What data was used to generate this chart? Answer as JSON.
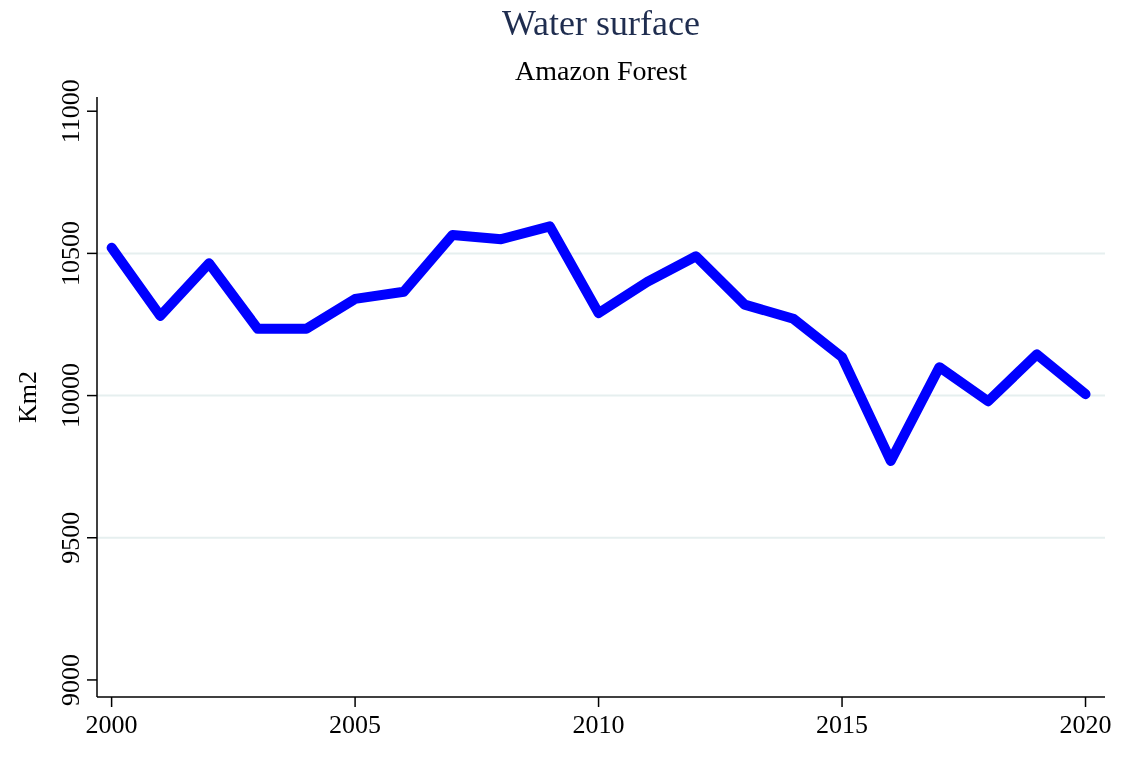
{
  "chart_data": {
    "type": "line",
    "title": "Water surface",
    "subtitle": "Amazon Forest",
    "ylabel": "Km2",
    "x": [
      2000,
      2001,
      2002,
      2003,
      2004,
      2005,
      2006,
      2007,
      2008,
      2009,
      2010,
      2011,
      2012,
      2013,
      2014,
      2015,
      2016,
      2017,
      2018,
      2019,
      2020
    ],
    "series": [
      {
        "color": "#0000ff",
        "values": [
          10520,
          10280,
          10465,
          10235,
          10235,
          10340,
          10365,
          10565,
          10550,
          10595,
          10290,
          10400,
          10490,
          10320,
          10270,
          10135,
          9770,
          10100,
          9980,
          10145,
          10005
        ]
      }
    ],
    "xlim": [
      1999.7,
      2020.4
    ],
    "xticks": [
      2000,
      2005,
      2010,
      2015,
      2020
    ],
    "ylim": [
      8940,
      11050
    ],
    "yticks": [
      9000,
      9500,
      10000,
      10500,
      11000
    ],
    "grid": "y",
    "marker": "none",
    "line_style": "solid"
  }
}
